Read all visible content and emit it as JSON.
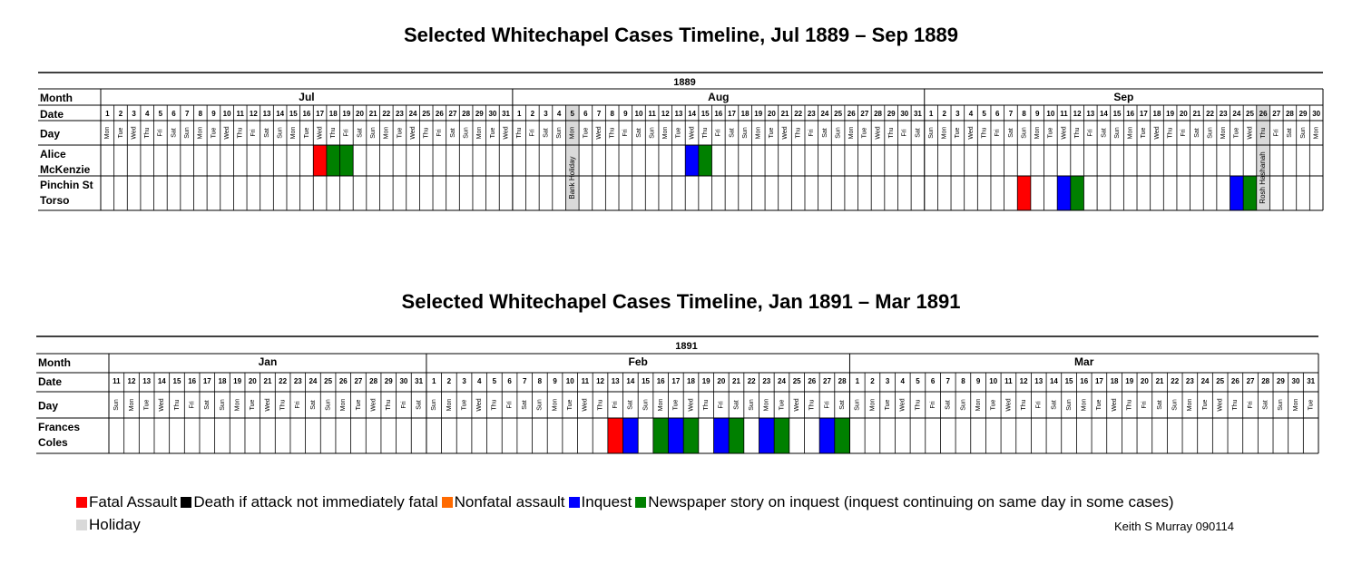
{
  "titles": {
    "t1": "Selected Whitechapel Cases Timeline, Jul 1889 – Sep 1889",
    "t2": "Selected Whitechapel Cases Timeline, Jan 1891 – Mar 1891"
  },
  "legend": {
    "items": [
      {
        "label": "Fatal Assault",
        "color": "#ff0000"
      },
      {
        "label": "Death if attack not immediately fatal",
        "color": "#000000"
      },
      {
        "label": "Nonfatal assault",
        "color": "#ff6a00"
      },
      {
        "label": "Inquest",
        "color": "#0000ff"
      },
      {
        "label": "Newspaper story on inquest (inquest continuing on same day in some cases)",
        "color": "#008000"
      }
    ],
    "holiday": {
      "label": "Holiday",
      "color": "#d9d9d9"
    }
  },
  "credit": "Keith S Murray 090114",
  "chart_data": [
    {
      "type": "table",
      "year": "1889",
      "row_labels": {
        "month": "Month",
        "date": "Date",
        "day": "Day"
      },
      "months": [
        {
          "name": "Jul",
          "days": 31,
          "start": 1,
          "first_weekday": 1
        },
        {
          "name": "Aug",
          "days": 31,
          "start": 1,
          "first_weekday": 4
        },
        {
          "name": "Sep",
          "days": 30,
          "start": 1,
          "first_weekday": 0
        }
      ],
      "holidays": [
        {
          "month": 1,
          "day": 5,
          "label": "Bank Holiday"
        },
        {
          "month": 2,
          "day": 26,
          "label": "Rosh Hashanah"
        }
      ],
      "cases": [
        {
          "name": [
            "Alice",
            "McKenzie"
          ],
          "events": [
            {
              "month": 0,
              "day": 17,
              "type": "Fatal Assault"
            },
            {
              "month": 0,
              "day": 18,
              "type": "Newspaper story on inquest"
            },
            {
              "month": 0,
              "day": 19,
              "type": "Newspaper story on inquest"
            },
            {
              "month": 1,
              "day": 14,
              "type": "Inquest"
            },
            {
              "month": 1,
              "day": 15,
              "type": "Newspaper story on inquest"
            }
          ]
        },
        {
          "name": [
            "Pinchin St",
            "Torso"
          ],
          "events": [
            {
              "month": 2,
              "day": 8,
              "type": "Fatal Assault"
            },
            {
              "month": 2,
              "day": 11,
              "type": "Inquest"
            },
            {
              "month": 2,
              "day": 12,
              "type": "Newspaper story on inquest"
            },
            {
              "month": 2,
              "day": 24,
              "type": "Inquest"
            },
            {
              "month": 2,
              "day": 25,
              "type": "Newspaper story on inquest"
            }
          ]
        }
      ]
    },
    {
      "type": "table",
      "year": "1891",
      "row_labels": {
        "month": "Month",
        "date": "Date",
        "day": "Day"
      },
      "months": [
        {
          "name": "Jan",
          "days": 21,
          "start": 11,
          "first_weekday": 0
        },
        {
          "name": "Feb",
          "days": 28,
          "start": 1,
          "first_weekday": 0
        },
        {
          "name": "Mar",
          "days": 31,
          "start": 1,
          "first_weekday": 0
        }
      ],
      "holidays": [],
      "cases": [
        {
          "name": [
            "Frances",
            "Coles"
          ],
          "events": [
            {
              "month": 1,
              "day": 13,
              "type": "Fatal Assault"
            },
            {
              "month": 1,
              "day": 14,
              "type": "Inquest"
            },
            {
              "month": 1,
              "day": 16,
              "type": "Newspaper story on inquest"
            },
            {
              "month": 1,
              "day": 17,
              "type": "Inquest"
            },
            {
              "month": 1,
              "day": 18,
              "type": "Newspaper story on inquest"
            },
            {
              "month": 1,
              "day": 20,
              "type": "Inquest"
            },
            {
              "month": 1,
              "day": 21,
              "type": "Newspaper story on inquest"
            },
            {
              "month": 1,
              "day": 23,
              "type": "Inquest"
            },
            {
              "month": 1,
              "day": 24,
              "type": "Newspaper story on inquest"
            },
            {
              "month": 1,
              "day": 27,
              "type": "Inquest"
            },
            {
              "month": 1,
              "day": 28,
              "type": "Newspaper story on inquest"
            }
          ]
        }
      ]
    }
  ]
}
